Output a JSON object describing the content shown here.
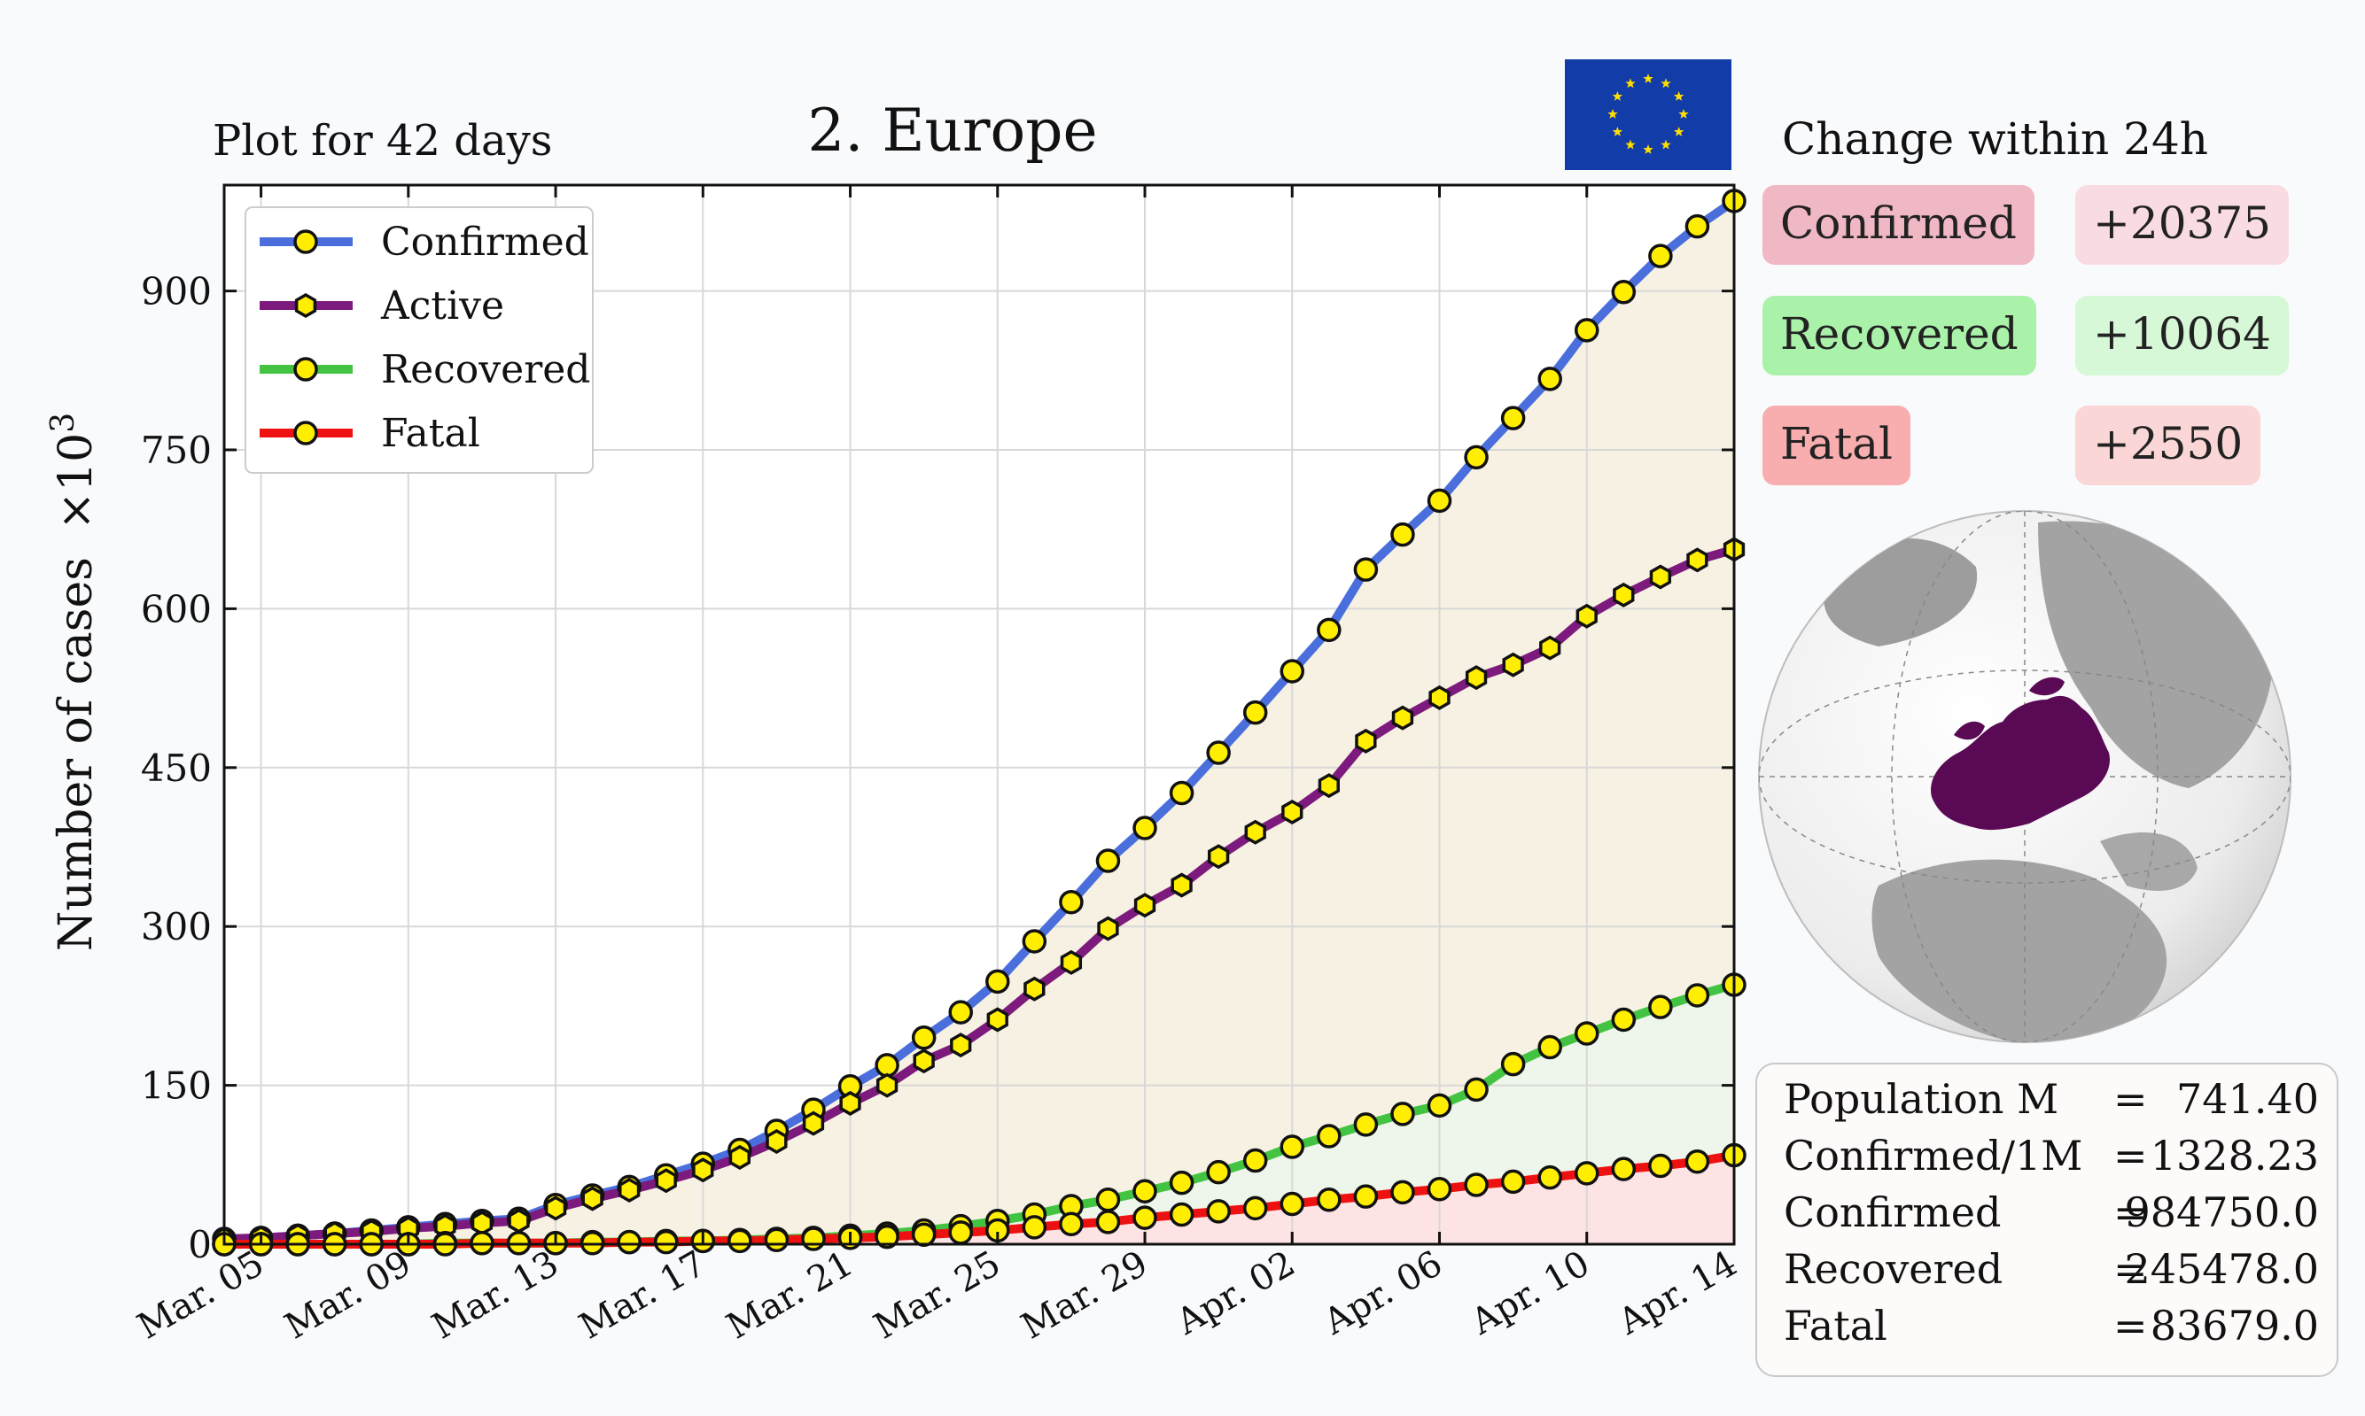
{
  "plot_note": "Plot for 42 days",
  "title": "2. Europe",
  "change_panel": {
    "title": "Change within 24h",
    "items": [
      {
        "label": "Confirmed",
        "value": "+20375",
        "label_color": "#f0b7c4",
        "value_color": "#f9dce2"
      },
      {
        "label": "Recovered",
        "value": "+10064",
        "label_color": "#aaf2aa",
        "value_color": "#d6f8d6"
      },
      {
        "label": "Fatal",
        "value": "+2550",
        "label_color": "#f8aeae",
        "value_color": "#fad6d6"
      }
    ]
  },
  "stats": [
    {
      "label": "Population M",
      "eq": "=",
      "value": "741.40"
    },
    {
      "label": "Confirmed/1M",
      "eq": "=",
      "value": "1328.23"
    },
    {
      "label": "Confirmed",
      "eq": "=",
      "value": "984750.0"
    },
    {
      "label": "Recovered",
      "eq": "=",
      "value": "245478.0"
    },
    {
      "label": "Fatal",
      "eq": "=",
      "value": "83679.0"
    }
  ],
  "icons": {
    "flag": "eu-flag-icon",
    "globe": "europe-globe-icon"
  },
  "chart_data": {
    "type": "line",
    "ylabel": "Number of cases",
    "ylabel_suffix": "×10",
    "ylabel_exp": "3",
    "ylim": [
      0,
      1000
    ],
    "yticks": [
      0,
      150,
      300,
      450,
      600,
      750,
      900
    ],
    "x": [
      "Mar. 04",
      "Mar. 05",
      "Mar. 06",
      "Mar. 07",
      "Mar. 08",
      "Mar. 09",
      "Mar. 10",
      "Mar. 11",
      "Mar. 12",
      "Mar. 13",
      "Mar. 14",
      "Mar. 15",
      "Mar. 16",
      "Mar. 17",
      "Mar. 18",
      "Mar. 19",
      "Mar. 20",
      "Mar. 21",
      "Mar. 22",
      "Mar. 23",
      "Mar. 24",
      "Mar. 25",
      "Mar. 26",
      "Mar. 27",
      "Mar. 28",
      "Mar. 29",
      "Mar. 30",
      "Mar. 31",
      "Apr. 01",
      "Apr. 02",
      "Apr. 03",
      "Apr. 04",
      "Apr. 05",
      "Apr. 06",
      "Apr. 07",
      "Apr. 08",
      "Apr. 09",
      "Apr. 10",
      "Apr. 11",
      "Apr. 12",
      "Apr. 13",
      "Apr. 14"
    ],
    "xtick_labels": [
      "Mar. 05",
      "Mar. 09",
      "Mar. 13",
      "Mar. 17",
      "Mar. 21",
      "Mar. 25",
      "Mar. 29",
      "Apr. 02",
      "Apr. 06",
      "Apr. 10",
      "Apr. 14"
    ],
    "legend_position": "top-left",
    "grid": true,
    "fills": [
      {
        "series": "Confirmed",
        "color": "#f7f1e3"
      },
      {
        "series": "Recovered",
        "color": "#eef5ea"
      },
      {
        "series": "Fatal",
        "color": "#fde3e3"
      }
    ],
    "series": [
      {
        "name": "Confirmed",
        "color": "#4a6fdc",
        "marker": "circle",
        "values": [
          5,
          6,
          8,
          10,
          13,
          16,
          19,
          22,
          24,
          37,
          46,
          54,
          65,
          76,
          89,
          107,
          127,
          149,
          169,
          195,
          219,
          248,
          286,
          323,
          362,
          393,
          426,
          464,
          502,
          541,
          580,
          637,
          670,
          702,
          743,
          780,
          817,
          863,
          899,
          933,
          961,
          985
        ]
      },
      {
        "name": "Active",
        "color": "#7d1a7d",
        "marker": "hexagon",
        "values": [
          5,
          6,
          8,
          10,
          12,
          15,
          17,
          20,
          22,
          34,
          43,
          51,
          60,
          70,
          82,
          97,
          114,
          133,
          150,
          173,
          188,
          212,
          241,
          266,
          298,
          320,
          339,
          366,
          389,
          408,
          433,
          475,
          497,
          516,
          535,
          547,
          563,
          593,
          613,
          630,
          646,
          656
        ]
      },
      {
        "name": "Recovered",
        "color": "#42c442",
        "marker": "circle",
        "values": [
          0,
          0,
          0,
          0,
          0,
          0,
          1,
          1,
          1,
          1,
          2,
          2,
          3,
          3,
          4,
          5,
          6,
          8,
          10,
          13,
          17,
          22,
          28,
          36,
          42,
          50,
          58,
          68,
          79,
          92,
          102,
          113,
          123,
          131,
          146,
          170,
          186,
          199,
          212,
          224,
          235,
          245
        ]
      },
      {
        "name": "Fatal",
        "color": "#ee1111",
        "marker": "circle",
        "values": [
          0,
          0,
          0,
          0,
          0,
          0,
          0,
          1,
          1,
          1,
          1,
          2,
          2,
          3,
          3,
          4,
          5,
          6,
          7,
          9,
          11,
          13,
          16,
          19,
          21,
          25,
          28,
          31,
          34,
          38,
          42,
          45,
          49,
          52,
          56,
          59,
          63,
          67,
          71,
          74,
          78,
          84
        ]
      }
    ]
  }
}
